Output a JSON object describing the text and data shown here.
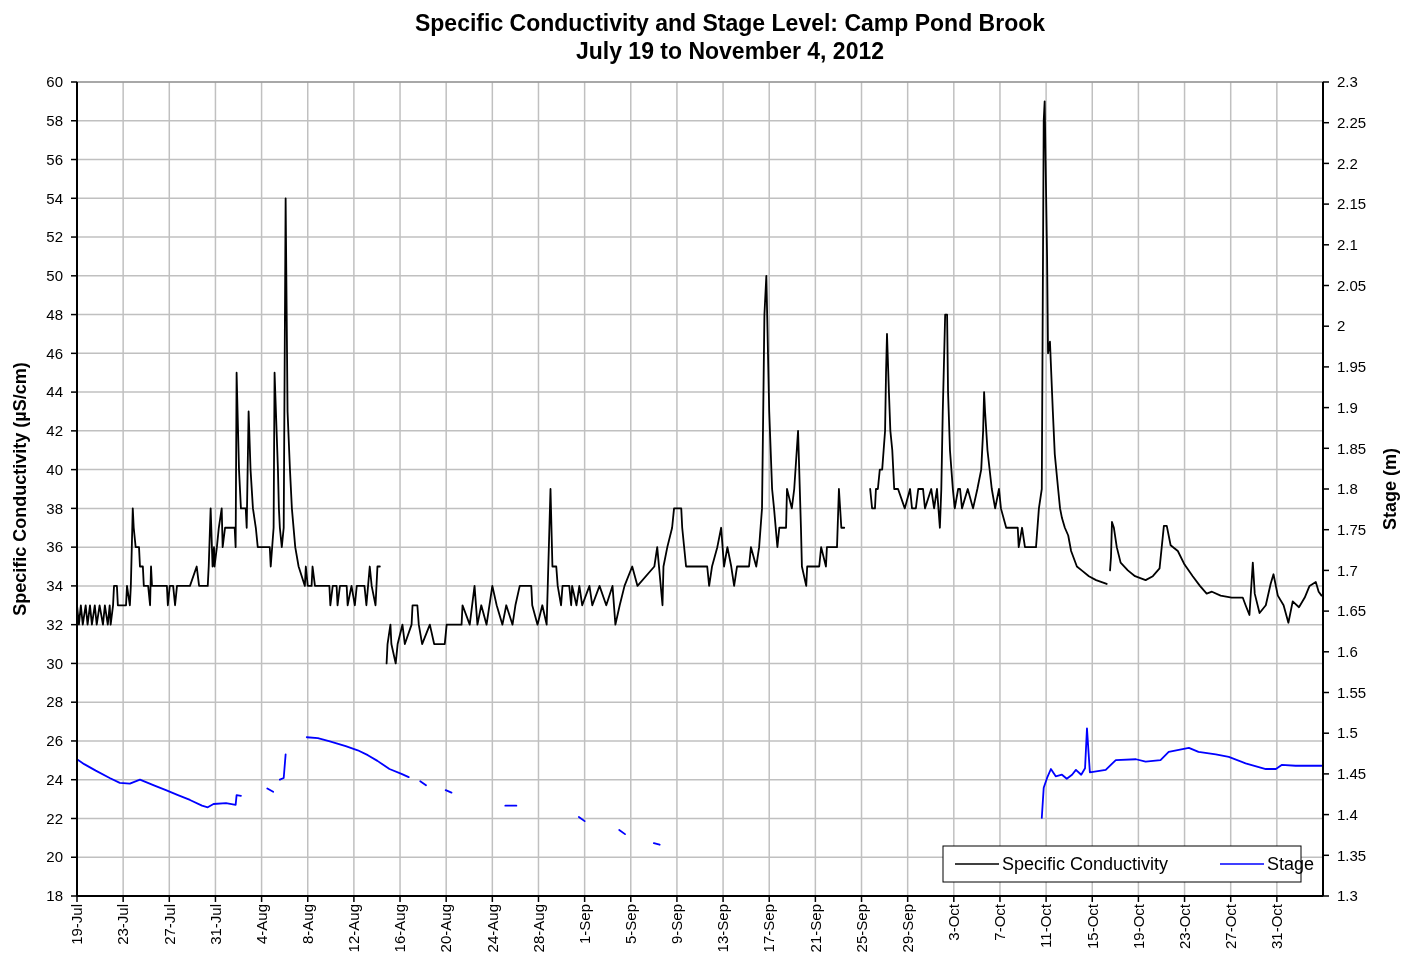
{
  "chart_data": {
    "type": "line",
    "title": "Specific Conductivity and Stage Level: Camp Pond Brook",
    "subtitle": "July 19 to November 4, 2012",
    "ylabel": "Specific Conductivity  (µS/cm)",
    "y2label": "Stage (m)",
    "xlim": [
      "2012-07-19",
      "2012-11-04"
    ],
    "xticks": [
      {
        "value": "2012-07-19",
        "label": "19-Jul"
      },
      {
        "value": "2012-07-23",
        "label": "23-Jul"
      },
      {
        "value": "2012-07-27",
        "label": "27-Jul"
      },
      {
        "value": "2012-07-31",
        "label": "31-Jul"
      },
      {
        "value": "2012-08-04",
        "label": "4-Aug"
      },
      {
        "value": "2012-08-08",
        "label": "8-Aug"
      },
      {
        "value": "2012-08-12",
        "label": "12-Aug"
      },
      {
        "value": "2012-08-16",
        "label": "16-Aug"
      },
      {
        "value": "2012-08-20",
        "label": "20-Aug"
      },
      {
        "value": "2012-08-24",
        "label": "24-Aug"
      },
      {
        "value": "2012-08-28",
        "label": "28-Aug"
      },
      {
        "value": "2012-09-01",
        "label": "1-Sep"
      },
      {
        "value": "2012-09-05",
        "label": "5-Sep"
      },
      {
        "value": "2012-09-09",
        "label": "9-Sep"
      },
      {
        "value": "2012-09-13",
        "label": "13-Sep"
      },
      {
        "value": "2012-09-17",
        "label": "17-Sep"
      },
      {
        "value": "2012-09-21",
        "label": "21-Sep"
      },
      {
        "value": "2012-09-25",
        "label": "25-Sep"
      },
      {
        "value": "2012-09-29",
        "label": "29-Sep"
      },
      {
        "value": "2012-10-03",
        "label": "3-Oct"
      },
      {
        "value": "2012-10-07",
        "label": "7-Oct"
      },
      {
        "value": "2012-10-11",
        "label": "11-Oct"
      },
      {
        "value": "2012-10-15",
        "label": "15-Oct"
      },
      {
        "value": "2012-10-19",
        "label": "19-Oct"
      },
      {
        "value": "2012-10-23",
        "label": "23-Oct"
      },
      {
        "value": "2012-10-27",
        "label": "27-Oct"
      },
      {
        "value": "2012-10-31",
        "label": "31-Oct"
      }
    ],
    "ylim": [
      18,
      60
    ],
    "yticks": [
      18,
      20,
      22,
      24,
      26,
      28,
      30,
      32,
      34,
      36,
      38,
      40,
      42,
      44,
      46,
      48,
      50,
      52,
      54,
      56,
      58,
      60
    ],
    "y2lim": [
      1.3,
      2.3
    ],
    "y2ticks": [
      1.3,
      1.35,
      1.4,
      1.45,
      1.5,
      1.55,
      1.6,
      1.65,
      1.7,
      1.75,
      1.8,
      1.85,
      1.9,
      1.95,
      2,
      2.05,
      2.1,
      2.15,
      2.2,
      2.25,
      2.3
    ],
    "grid": true,
    "legend": "bottom right",
    "marker": "none",
    "line_style": "solid",
    "series": [
      {
        "name": "Specific Conductivity",
        "color": "#000000",
        "x": [
          "2012-07-19T00:00",
          "2012-07-19T04:00",
          "2012-07-19T08:00",
          "2012-07-19T12:00",
          "2012-07-19T18:00",
          "2012-07-19T22:00",
          "2012-07-20T03:00",
          "2012-07-20T07:00",
          "2012-07-20T13:00",
          "2012-07-20T17:00",
          "2012-07-20T23:00",
          "2012-07-21T06:00",
          "2012-07-21T10:00",
          "2012-07-21T16:00",
          "2012-07-21T20:00",
          "2012-07-21T22:00",
          "2012-07-22T03:00",
          "2012-07-22T05:00",
          "2012-07-22T11:00",
          "2012-07-22T13:00",
          "2012-07-23T06:00",
          "2012-07-23T08:00",
          "2012-07-23T14:00",
          "2012-07-23T16:00",
          "2012-07-23T20:00",
          "2012-07-23T22:00",
          "2012-07-24T02:00",
          "2012-07-24T09:00",
          "2012-07-24T11:00",
          "2012-07-24T17:00",
          "2012-07-24T19:00",
          "2012-07-25T04:00",
          "2012-07-25T08:00",
          "2012-07-25T10:00",
          "2012-07-25T12:00",
          "2012-07-26T19:00",
          "2012-07-26T21:00",
          "2012-07-27T01:00",
          "2012-07-27T08:00",
          "2012-07-27T12:00",
          "2012-07-27T16:00",
          "2012-07-28T19:00",
          "2012-07-29T09:00",
          "2012-07-29T14:00",
          "2012-07-30T08:00",
          "2012-07-30T10:00",
          "2012-07-30T14:00",
          "2012-07-30T18:00",
          "2012-07-30T21:00",
          "2012-07-30T22:00",
          "2012-07-31T03:00",
          "2012-07-31T07:00",
          "2012-07-31T13:00",
          "2012-07-31T15:00",
          "2012-07-31T20:00",
          "2012-08-01T16:00",
          "2012-08-01T18:00",
          "2012-08-01T20:00",
          "2012-08-02T01:00",
          "2012-08-02T05:00",
          "2012-08-02T15:00",
          "2012-08-02T17:00",
          "2012-08-02T21:00",
          "2012-08-03T01:00",
          "2012-08-03T06:00",
          "2012-08-03T12:00",
          "2012-08-03T16:00",
          "2012-08-04T17:00",
          "2012-08-04T19:00",
          "2012-08-05T01:00",
          "2012-08-05T03:00",
          "2012-08-05T10:00",
          "2012-08-05T12:00",
          "2012-08-05T14:00",
          "2012-08-05T18:00",
          "2012-08-05T22:00",
          "2012-08-06T02:00",
          "2012-08-06T06:00",
          "2012-08-06T11:00",
          "2012-08-06T15:00",
          "2012-08-06T22:00",
          "2012-08-07T05:00",
          "2012-08-07T18:00",
          "2012-08-07T20:00",
          "2012-08-08T00:00",
          "2012-08-08T08:00",
          "2012-08-08T10:00",
          "2012-08-08T15:00",
          "2012-08-09T21:00",
          "2012-08-09T23:00",
          "2012-08-10T04:00",
          "2012-08-10T12:00",
          "2012-08-10T14:00",
          "2012-08-10T19:00",
          "2012-08-11T09:00",
          "2012-08-11T11:00",
          "2012-08-11T19:00",
          "2012-08-12T02:00",
          "2012-08-12T06:00",
          "2012-08-12T22:00",
          "2012-08-13T02:00",
          "2012-08-13T09:00",
          "2012-08-13T13:00",
          "2012-08-13T21:00",
          "2012-08-14T01:00",
          "2012-08-14T06:00",
          "2012-08-14T12:00",
          "2012-08-14T20:00",
          "2012-08-14T22:00",
          "2012-08-15T04:00",
          "2012-08-15T06:00",
          "2012-08-15T15:00",
          "2012-08-15T19:00",
          "2012-08-16T05:00",
          "2012-08-16T10:00",
          "2012-08-17T00:00",
          "2012-08-17T02:00",
          "2012-08-17T12:00",
          "2012-08-17T15:00",
          "2012-08-17T22:00",
          "2012-08-18T14:00",
          "2012-08-18T23:00",
          "2012-08-19T21:00",
          "2012-08-20T01:00",
          "2012-08-21T08:00",
          "2012-08-21T10:00",
          "2012-08-22T01:00",
          "2012-08-22T11:00",
          "2012-08-22T17:00",
          "2012-08-23T01:00",
          "2012-08-23T12:00",
          "2012-08-24T00:00",
          "2012-08-24T09:00",
          "2012-08-24T21:00",
          "2012-08-25T05:00",
          "2012-08-25T18:00",
          "2012-08-26T00:00",
          "2012-08-26T09:00",
          "2012-08-27T09:00",
          "2012-08-27T11:00",
          "2012-08-27T22:00",
          "2012-08-28T08:00",
          "2012-08-28T17:00",
          "2012-08-29T01:00",
          "2012-08-29T05:00",
          "2012-08-29T13:00",
          "2012-08-29T16:00",
          "2012-08-29T23:00",
          "2012-08-30T02:00",
          "2012-08-30T16:00",
          "2012-08-30T20:00",
          "2012-08-30T22:00",
          "2012-08-31T07:00",
          "2012-08-31T13:00",
          "2012-08-31T19:00",
          "2012-09-01T10:00",
          "2012-09-01T16:00",
          "2012-09-02T07:00",
          "2012-09-02T21:00",
          "2012-09-03T10:00",
          "2012-09-03T16:00",
          "2012-09-04T01:00",
          "2012-09-04T11:00",
          "2012-09-05T03:00",
          "2012-09-05T14:00",
          "2012-09-07T01:00",
          "2012-09-07T07:00",
          "2012-09-07T18:00",
          "2012-09-07T20:00",
          "2012-09-08T04:00",
          "2012-09-08T14:00",
          "2012-09-08T18:00",
          "2012-09-09T09:00",
          "2012-09-09T11:00",
          "2012-09-09T19:00",
          "2012-09-11T15:00",
          "2012-09-11T19:00",
          "2012-09-12T01:00",
          "2012-09-12T12:00",
          "2012-09-12T20:00",
          "2012-09-13T02:00",
          "2012-09-13T09:00",
          "2012-09-13T17:00",
          "2012-09-13T23:00",
          "2012-09-14T05:00",
          "2012-09-15T06:00",
          "2012-09-15T10:00",
          "2012-09-15T21:00",
          "2012-09-16T03:00",
          "2012-09-16T09:00",
          "2012-09-16T14:00",
          "2012-09-16T18:00",
          "2012-09-17T00:00",
          "2012-09-17T06:00",
          "2012-09-17T10:00",
          "2012-09-17T17:00",
          "2012-09-17T21:00",
          "2012-09-18T11:00",
          "2012-09-18T13:00",
          "2012-09-18T23:00",
          "2012-09-19T04:00",
          "2012-09-19T12:00",
          "2012-09-19T18:00",
          "2012-09-19T20:00",
          "2012-09-20T05:00",
          "2012-09-20T07:00",
          "2012-09-21T08:00",
          "2012-09-21T12:00",
          "2012-09-21T22:00",
          "2012-09-22T00:00",
          "2012-09-22T21:00",
          "2012-09-23T01:00",
          "2012-09-23T06:00",
          "2012-09-23T12:00",
          "2012-09-24T00:00",
          "2012-09-25T18:00",
          "2012-09-25T22:00",
          "2012-09-26T04:00",
          "2012-09-26T06:00",
          "2012-09-26T10:00",
          "2012-09-26T14:00",
          "2012-09-26T19:00",
          "2012-09-26T22:00",
          "2012-09-27T01:00",
          "2012-09-27T03:00",
          "2012-09-27T05:00",
          "2012-09-27T09:00",
          "2012-09-27T12:00",
          "2012-09-27T16:00",
          "2012-09-27T20:00",
          "2012-09-28T04:00",
          "2012-09-28T18:00",
          "2012-09-29T05:00",
          "2012-09-29T09:00",
          "2012-09-29T17:00",
          "2012-09-29T22:00",
          "2012-09-30T08:00",
          "2012-09-30T12:00",
          "2012-10-01T01:00",
          "2012-10-01T07:00",
          "2012-10-01T13:00",
          "2012-10-01T19:00",
          "2012-10-01T22:00",
          "2012-10-02T01:00",
          "2012-10-02T06:00",
          "2012-10-02T10:00",
          "2012-10-02T12:00",
          "2012-10-02T16:00",
          "2012-10-02T22:00",
          "2012-10-03T02:00",
          "2012-10-03T09:00",
          "2012-10-03T13:00",
          "2012-10-03T17:00",
          "2012-10-04T05:00",
          "2012-10-04T16:00",
          "2012-10-05T01:00",
          "2012-10-05T09:00",
          "2012-10-05T13:00",
          "2012-10-05T15:00",
          "2012-10-05T17:00",
          "2012-10-05T22:00",
          "2012-10-06T07:00",
          "2012-10-06T14:00",
          "2012-10-06T22:00",
          "2012-10-07T02:00",
          "2012-10-07T13:00",
          "2012-10-08T13:00",
          "2012-10-08T15:00",
          "2012-10-08T22:00",
          "2012-10-09T04:00",
          "2012-10-10T03:00",
          "2012-10-10T09:00",
          "2012-10-10T15:00",
          "2012-10-10T19:00",
          "2012-10-10T21:00",
          "2012-10-11T02:00",
          "2012-10-11T04:00",
          "2012-10-11T08:00",
          "2012-10-11T14:00",
          "2012-10-11T18:00",
          "2012-10-12T01:00",
          "2012-10-12T05:00",
          "2012-10-12T09:00",
          "2012-10-12T15:00",
          "2012-10-12T22:00",
          "2012-10-13T04:00",
          "2012-10-13T16:00",
          "2012-10-14T02:00",
          "2012-10-14T17:00",
          "2012-10-15T08:00",
          "2012-10-16T06:00",
          "2012-10-16T12:00",
          "2012-10-16T13:00",
          "2012-10-16T15:00",
          "2012-10-16T17:00",
          "2012-10-16T21:00",
          "2012-10-17T03:00",
          "2012-10-17T11:00",
          "2012-10-18T02:00",
          "2012-10-18T17:00",
          "2012-10-19T15:00",
          "2012-10-20T06:00",
          "2012-10-20T20:00",
          "2012-10-21T05:00",
          "2012-10-21T11:00",
          "2012-10-21T19:00",
          "2012-10-22T10:00",
          "2012-10-23T00:00",
          "2012-10-23T17:00",
          "2012-10-24T08:00",
          "2012-10-24T22:00",
          "2012-10-25T09:00",
          "2012-10-26T03:00",
          "2012-10-27T02:00",
          "2012-10-28T01:00",
          "2012-10-28T07:00",
          "2012-10-28T15:00",
          "2012-10-28T22:00",
          "2012-10-29T02:00",
          "2012-10-29T12:00",
          "2012-10-30T01:00",
          "2012-10-30T11:00",
          "2012-10-30T17:00",
          "2012-10-31T02:00",
          "2012-10-31T14:00",
          "2012-11-01T00:00",
          "2012-11-01T09:00",
          "2012-11-01T22:00",
          "2012-11-02T10:00",
          "2012-11-02T20:00",
          "2012-11-03T09:00",
          "2012-11-03T15:00",
          "2012-11-03T21:00"
        ],
        "values": [
          33,
          32,
          33,
          32,
          33,
          32,
          33,
          32,
          33,
          32,
          33,
          32,
          33,
          32,
          33,
          32,
          33,
          34,
          34,
          33,
          33,
          34,
          33,
          34,
          38,
          37,
          36,
          36,
          35,
          35,
          34,
          34,
          33,
          35,
          34,
          34,
          33,
          34,
          34,
          33,
          34,
          34,
          35,
          34,
          34,
          35,
          38,
          35,
          36,
          35,
          36,
          37,
          38,
          36,
          37,
          37,
          36,
          45,
          40,
          38,
          38,
          37,
          43,
          40,
          38,
          37,
          36,
          36,
          35,
          37,
          45,
          40,
          38,
          37,
          36,
          37,
          54,
          43,
          40,
          38,
          36,
          35,
          34,
          35,
          34,
          34,
          35,
          34,
          34,
          33,
          34,
          34,
          33,
          34,
          34,
          33,
          34,
          33,
          34,
          34,
          33,
          35,
          34,
          33,
          35,
          35,
          null,
          30,
          31,
          32,
          31,
          30,
          31,
          32,
          31,
          32,
          33,
          33,
          32,
          31,
          32,
          31,
          31,
          32,
          32,
          33,
          32,
          34,
          32,
          33,
          32,
          34,
          33,
          32,
          33,
          32,
          33,
          34,
          34,
          33,
          32,
          33,
          32,
          39,
          35,
          35,
          34,
          33,
          34,
          34,
          33,
          34,
          33,
          34,
          33,
          34,
          33,
          34,
          33,
          34,
          32,
          33,
          34,
          35,
          34,
          35,
          36,
          33,
          35,
          36,
          37,
          38,
          38,
          37,
          35,
          35,
          34,
          35,
          36,
          37,
          35,
          36,
          35,
          34,
          35,
          35,
          36,
          35,
          36,
          38,
          48,
          50,
          43,
          39,
          38,
          36,
          37,
          37,
          39,
          38,
          39,
          42,
          37,
          35,
          34,
          35,
          35,
          36,
          35,
          36,
          36,
          39,
          37,
          37,
          null,
          39,
          38,
          38,
          39,
          39,
          40,
          40,
          41,
          42,
          45,
          47,
          44,
          42,
          41,
          39,
          39,
          38,
          39,
          38,
          38,
          39,
          39,
          38,
          39,
          38,
          39,
          37,
          39,
          43,
          48,
          48,
          44,
          41,
          39,
          38,
          39,
          39,
          38,
          39,
          38,
          39,
          40,
          42,
          44,
          43,
          41,
          39,
          38,
          39,
          38,
          37,
          37,
          36,
          37,
          36,
          36,
          38,
          39,
          58,
          59,
          51,
          46,
          46.6,
          43,
          40.8,
          39,
          38,
          37.5,
          37,
          36.6,
          35.8,
          35,
          34.8,
          34.5,
          34.3,
          34.1,
          null,
          34.8,
          35.5,
          37.3,
          37,
          36,
          35.2,
          34.8,
          34.5,
          34.3,
          34.5,
          34.9,
          37.1,
          37.1,
          36.1,
          35.8,
          35.1,
          34.5,
          34,
          33.6,
          33.7,
          33.5,
          33.4,
          33.4,
          33,
          32.5,
          35.2,
          33.6,
          32.6,
          33,
          34.1,
          34.6,
          33.5,
          33,
          32.1,
          33.2,
          32.9,
          33.4,
          34,
          34.2,
          33.7,
          33.5
        ]
      },
      {
        "name": "Stage",
        "color": "#0000ff",
        "axis": "y2",
        "x": [
          "2012-07-19T00:00",
          "2012-07-19T15:00",
          "2012-07-20T15:00",
          "2012-07-21T20:00",
          "2012-07-22T17:00",
          "2012-07-23T14:00",
          "2012-07-24T11:00",
          "2012-07-25T16:00",
          "2012-07-26T17:00",
          "2012-07-27T18:00",
          "2012-07-28T19:00",
          "2012-07-29T20:00",
          "2012-07-30T08:00",
          "2012-07-30T20:00",
          "2012-07-31T22:00",
          "2012-08-01T18:00",
          "2012-08-01T20:00",
          "2012-08-02T05:00",
          "2012-08-02T12:00",
          "2012-08-04T12:00",
          "2012-08-05T00:00",
          "2012-08-05T06:00",
          "2012-08-05T14:00",
          "2012-08-05T22:00",
          "2012-08-06T02:00",
          "2012-08-06T12:00",
          "2012-08-07T22:00",
          "2012-08-08T21:00",
          "2012-08-09T22:00",
          "2012-08-11T07:00",
          "2012-08-12T08:00",
          "2012-08-13T05:00",
          "2012-08-14T01:00",
          "2012-08-15T02:00",
          "2012-08-16T03:00",
          "2012-08-16T18:00",
          "2012-08-17T00:00",
          "2012-08-17T18:00",
          "2012-08-18T06:00",
          "2012-08-18T12:00",
          "2012-08-19T23:00",
          "2012-08-20T11:00",
          "2012-08-21T00:00",
          "2012-08-25T03:00",
          "2012-08-26T02:00",
          "2012-08-26T12:00",
          "2012-08-31T12:00",
          "2012-09-01T00:00",
          "2012-09-01T06:00",
          "2012-09-04T00:00",
          "2012-09-04T12:00",
          "2012-09-04T18:00",
          "2012-09-07T00:00",
          "2012-09-07T12:00",
          "2012-09-08T00:00",
          "2012-10-10T15:00",
          "2012-10-10T19:00",
          "2012-10-11T02:00",
          "2012-10-11T10:00",
          "2012-10-11T20:00",
          "2012-10-12T09:00",
          "2012-10-12T19:00",
          "2012-10-13T06:00",
          "2012-10-13T14:00",
          "2012-10-14T01:00",
          "2012-10-14T09:00",
          "2012-10-14T13:00",
          "2012-10-14T19:00",
          "2012-10-16T04:00",
          "2012-10-17T01:00",
          "2012-10-18T19:00",
          "2012-10-19T15:00",
          "2012-10-20T22:00",
          "2012-10-21T15:00",
          "2012-10-23T09:00",
          "2012-10-24T05:00",
          "2012-10-25T17:00",
          "2012-10-26T20:00",
          "2012-10-28T07:00",
          "2012-10-30T01:00",
          "2012-10-30T22:00",
          "2012-10-31T10:00",
          "2012-11-01T15:00",
          "2012-11-03T09:00",
          "2012-11-03T21:00"
        ],
        "values": [
          1.468,
          1.462,
          1.454,
          1.445,
          1.439,
          1.438,
          1.443,
          1.436,
          1.43,
          1.424,
          1.418,
          1.411,
          1.409,
          1.413,
          1.414,
          1.412,
          1.424,
          1.423,
          null,
          1.432,
          1.428,
          null,
          1.443,
          1.445,
          1.474,
          null,
          1.495,
          1.494,
          1.49,
          1.484,
          1.479,
          1.473,
          1.466,
          1.456,
          1.45,
          1.446,
          null,
          1.441,
          1.436,
          null,
          1.43,
          1.427,
          null,
          1.411,
          1.411,
          null,
          1.397,
          1.392,
          null,
          1.381,
          1.376,
          null,
          1.365,
          1.363,
          null,
          1.396,
          1.433,
          1.445,
          1.456,
          1.447,
          1.449,
          1.444,
          1.449,
          1.455,
          1.449,
          1.457,
          1.506,
          1.452,
          1.455,
          1.467,
          1.468,
          1.465,
          1.467,
          1.477,
          1.482,
          1.477,
          1.474,
          1.471,
          1.463,
          1.456,
          1.456,
          1.461,
          1.46,
          1.46,
          1.46
        ]
      }
    ]
  }
}
